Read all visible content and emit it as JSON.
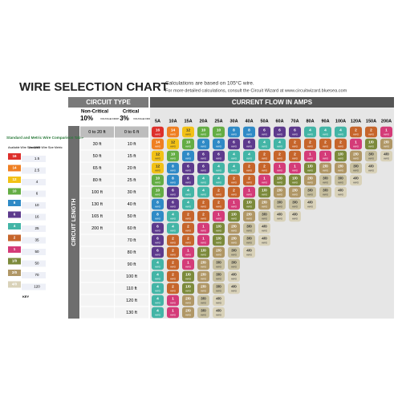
{
  "header": {
    "title": "WIRE SELECTION CHART",
    "note_1": "Calculations are based on 105°C wire.",
    "note_2": "For more detailed calculations, consult the Circuit Wizard at www.circuitwizard.bluesea.com"
  },
  "circuit_type": {
    "heading": "CIRCUIT TYPE",
    "non_critical": "Non-Critical",
    "non_critical_pct": "10%",
    "critical": "Critical",
    "critical_pct": "3%",
    "drop": "VOLTAGE DROP"
  },
  "current_heading": "CURRENT FLOW IN AMPS",
  "length_heading": "CIRCUIT LENGTH",
  "comparison": {
    "title": "Standard and Metric Wire Comparison Table",
    "awg_heading": "Available Wire Size AWG",
    "metric_heading": "Available Wire Size Metric",
    "rows": [
      [
        "16",
        "1.5"
      ],
      [
        "14",
        "2.5"
      ],
      [
        "12",
        "4"
      ],
      [
        "10",
        "6"
      ],
      [
        "8",
        "10"
      ],
      [
        "6",
        "16"
      ],
      [
        "4",
        "25"
      ],
      [
        "2",
        "35"
      ],
      [
        "1",
        "50"
      ],
      [
        "1/0",
        "50"
      ],
      [
        "2/0",
        "70"
      ],
      [
        "4/0",
        "120"
      ]
    ],
    "key": "KEY"
  },
  "gauge_colors": {
    "18": "#34489a",
    "16": "#dd2f2b",
    "14": "#ef7f22",
    "12": "#f2c116",
    "10": "#64ad44",
    "8": "#2f8ac6",
    "6": "#5d3a8d",
    "4": "#43b5a6",
    "2": "#c6652b",
    "1": "#d43b78",
    "1/0": "#7c8a3b",
    "2/0": "#b09766",
    "3/0": "#c7bf9f",
    "4/0": "#d9d2b9"
  },
  "table": {
    "unit": "AWG",
    "columns": [
      "5A",
      "10A",
      "15A",
      "20A",
      "25A",
      "30A",
      "40A",
      "50A",
      "60A",
      "70A",
      "80A",
      "90A",
      "100A",
      "120A",
      "150A",
      "200A"
    ],
    "rows": [
      {
        "non_critical": "0 to 20 ft",
        "critical": "0 to 6 ft",
        "cells": [
          "16",
          "14",
          "12",
          "10",
          "10",
          "8",
          "8",
          "6",
          "6",
          "6",
          "4",
          "4",
          "4",
          "2",
          "2",
          "1"
        ]
      },
      {
        "non_critical": "30 ft",
        "critical": "10 ft",
        "cells": [
          "14",
          "12",
          "10",
          "8",
          "8",
          "6",
          "6",
          "4",
          "4",
          "2",
          "2",
          "2",
          "2",
          "1",
          "1/0",
          "2/0"
        ]
      },
      {
        "non_critical": "50 ft",
        "critical": "15 ft",
        "cells": [
          "12",
          "10",
          "8",
          "6",
          "6",
          "4",
          "4",
          "2",
          "2",
          "2",
          "1",
          "1",
          "1/0",
          "2/0",
          "3/0",
          "4/0"
        ]
      },
      {
        "non_critical": "65 ft",
        "critical": "20 ft",
        "cells": [
          "12",
          "8",
          "6",
          "6",
          "4",
          "4",
          "2",
          "2",
          "1",
          "1",
          "1/0",
          "2/0",
          "2/0",
          "3/0",
          "4/0",
          null
        ]
      },
      {
        "non_critical": "80 ft",
        "critical": "25 ft",
        "cells": [
          "10",
          "8",
          "6",
          "4",
          "4",
          "2",
          "2",
          "1",
          "1/0",
          "1/0",
          "2/0",
          "3/0",
          "3/0",
          "4/0",
          null,
          null
        ]
      },
      {
        "non_critical": "100 ft",
        "critical": "30 ft",
        "cells": [
          "10",
          "6",
          "4",
          "4",
          "2",
          "2",
          "1",
          "1/0",
          "2/0",
          "2/0",
          "3/0",
          "3/0",
          "4/0",
          null,
          null,
          null
        ]
      },
      {
        "non_critical": "130 ft",
        "critical": "40 ft",
        "cells": [
          "8",
          "6",
          "4",
          "2",
          "2",
          "1",
          "1/0",
          "2/0",
          "3/0",
          "3/0",
          "4/0",
          null,
          null,
          null,
          null,
          null
        ]
      },
      {
        "non_critical": "165 ft",
        "critical": "50 ft",
        "cells": [
          "8",
          "4",
          "2",
          "2",
          "1",
          "1/0",
          "2/0",
          "3/0",
          "4/0",
          "4/0",
          null,
          null,
          null,
          null,
          null,
          null
        ]
      },
      {
        "non_critical": "200 ft",
        "critical": "60 ft",
        "cells": [
          "6",
          "4",
          "2",
          "1",
          "1/0",
          "2/0",
          "3/0",
          "4/0",
          null,
          null,
          null,
          null,
          null,
          null,
          null,
          null
        ]
      },
      {
        "non_critical": null,
        "critical": "70 ft",
        "cells": [
          "6",
          "2",
          "2",
          "1",
          "1/0",
          "2/0",
          "3/0",
          "4/0",
          null,
          null,
          null,
          null,
          null,
          null,
          null,
          null
        ]
      },
      {
        "non_critical": null,
        "critical": "80 ft",
        "cells": [
          "6",
          "2",
          "1",
          "1/0",
          "2/0",
          "3/0",
          "4/0",
          null,
          null,
          null,
          null,
          null,
          null,
          null,
          null,
          null
        ]
      },
      {
        "non_critical": null,
        "critical": "90 ft",
        "cells": [
          "4",
          "2",
          "1",
          "2/0",
          "3/0",
          "3/0",
          null,
          null,
          null,
          null,
          null,
          null,
          null,
          null,
          null,
          null
        ]
      },
      {
        "non_critical": null,
        "critical": "100 ft",
        "cells": [
          "4",
          "2",
          "1/0",
          "2/0",
          "3/0",
          "4/0",
          null,
          null,
          null,
          null,
          null,
          null,
          null,
          null,
          null,
          null
        ]
      },
      {
        "non_critical": null,
        "critical": "110 ft",
        "cells": [
          "4",
          "2",
          "1/0",
          "2/0",
          "3/0",
          "4/0",
          null,
          null,
          null,
          null,
          null,
          null,
          null,
          null,
          null,
          null
        ]
      },
      {
        "non_critical": null,
        "critical": "120 ft",
        "cells": [
          "4",
          "1",
          "2/0",
          "3/0",
          "4/0",
          null,
          null,
          null,
          null,
          null,
          null,
          null,
          null,
          null,
          null,
          null
        ]
      },
      {
        "non_critical": null,
        "critical": "130 ft",
        "cells": [
          "4",
          "1",
          "2/0",
          "3/0",
          "4/0",
          null,
          null,
          null,
          null,
          null,
          null,
          null,
          null,
          null,
          null,
          null
        ]
      }
    ]
  }
}
